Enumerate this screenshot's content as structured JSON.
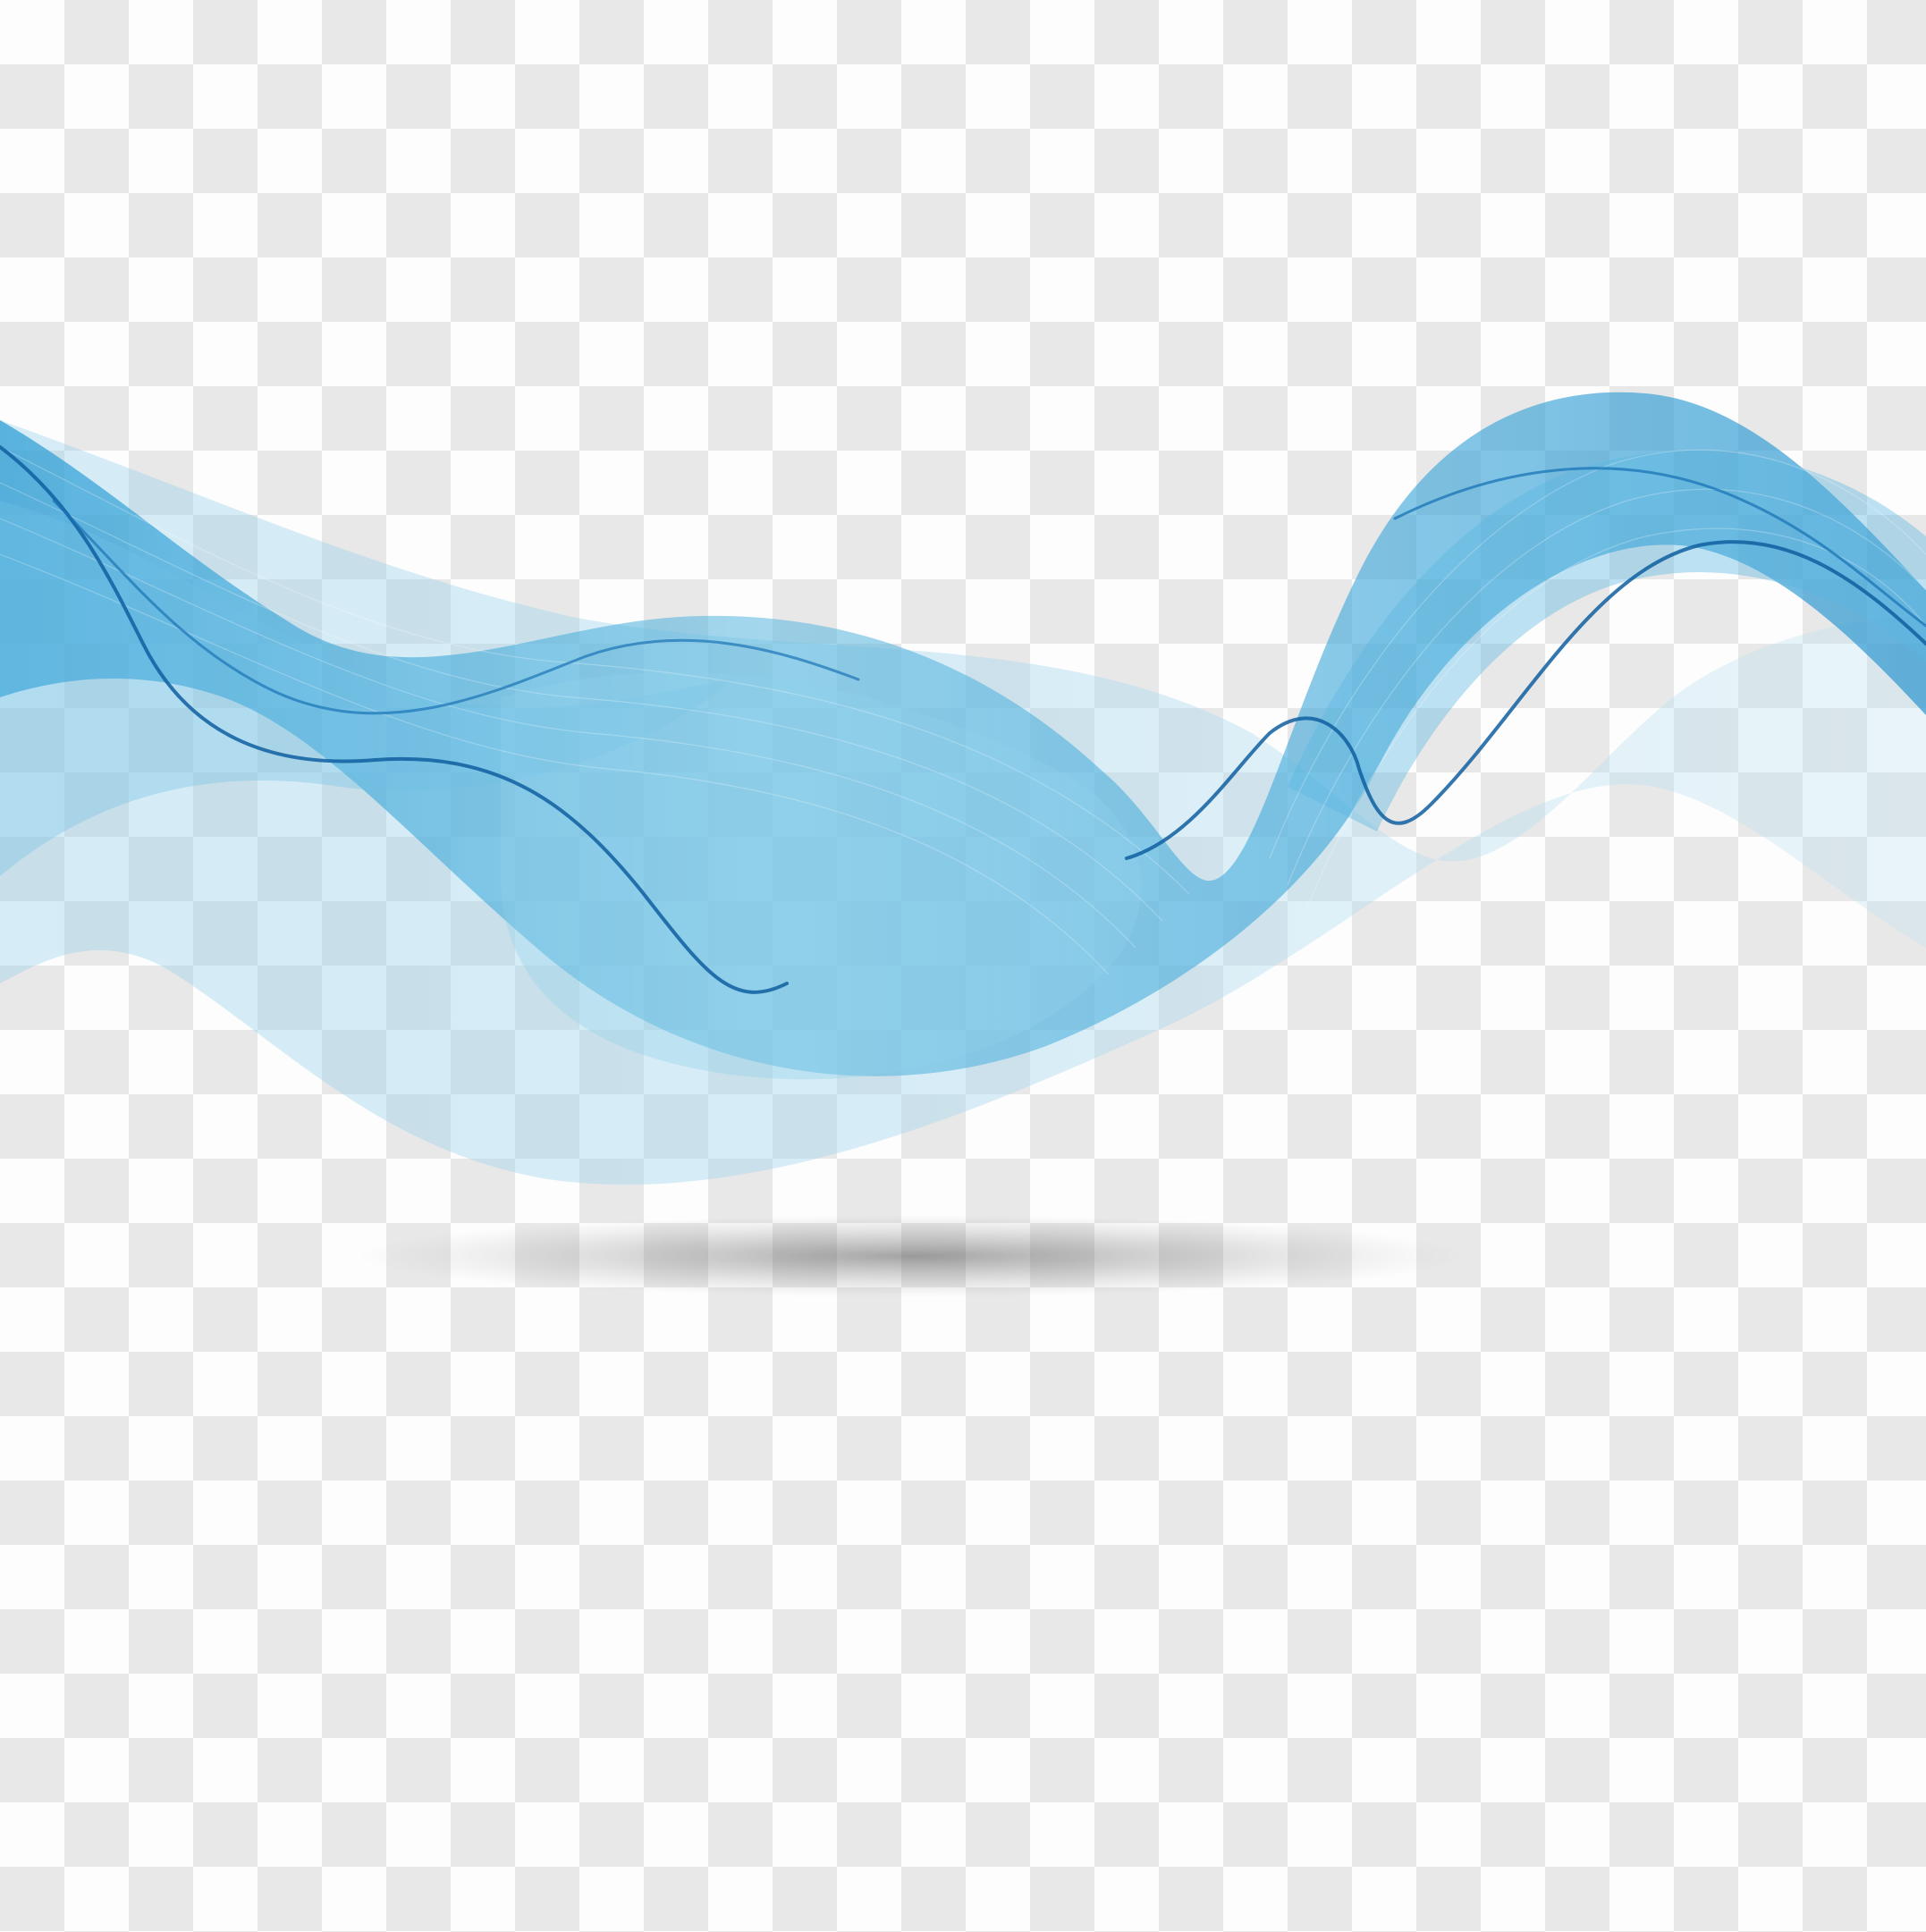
{
  "scene": {
    "subject": "abstract-blue-wave",
    "background": "transparency-checkerboard"
  },
  "colors": {
    "checker_light": "#fdfdfd",
    "checker_dark": "#e8e8e8",
    "wave_light": "#9fd3ea",
    "wave_mid": "#4bb0dd",
    "wave_deep": "#1f86c4",
    "wave_line_dark": "#0f5fa0",
    "shadow": "#5a5a5a"
  }
}
